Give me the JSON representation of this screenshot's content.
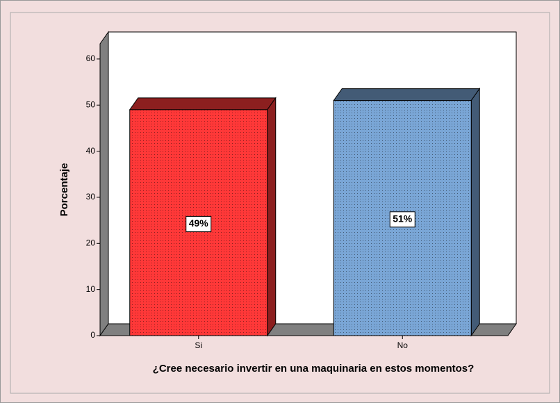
{
  "chart_data": {
    "type": "bar3d",
    "x_label": "¿Cree necesario invertir en una maquinaria en estos momentos?",
    "y_label": "Porcentaje",
    "categories": [
      "Si",
      "No"
    ],
    "values": [
      49,
      51
    ],
    "value_labels": [
      "49%",
      "51%"
    ],
    "colors": [
      "#ff3838",
      "#7aa6d6"
    ],
    "ylim": [
      0,
      63.3
    ],
    "yticks": [
      0,
      10,
      20,
      30,
      40,
      50,
      60
    ]
  }
}
